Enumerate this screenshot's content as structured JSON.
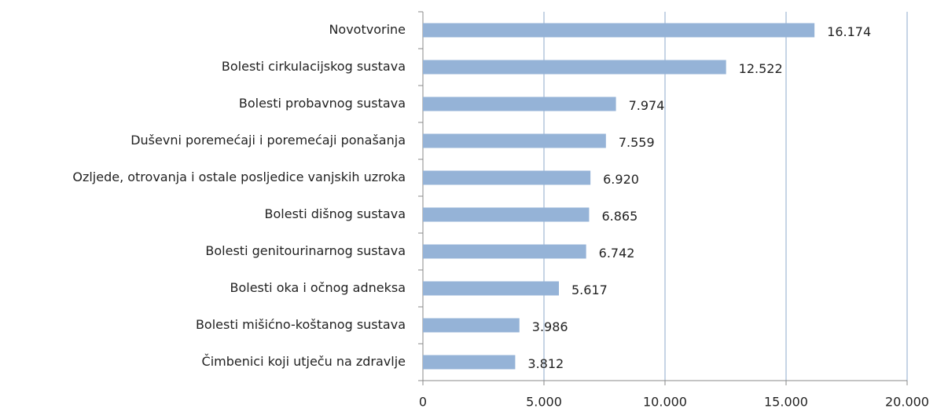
{
  "chart_data": {
    "type": "bar",
    "orientation": "horizontal",
    "categories": [
      "Novotvorine",
      "Bolesti cirkulacijskog sustava",
      "Bolesti probavnog sustava",
      "Duševni poremećaji i poremećaji ponašanja",
      "Ozljede, otrovanja i ostale posljedice vanjskih uzroka",
      "Bolesti dišnog sustava",
      "Bolesti genitourinarnog sustava",
      "Bolesti oka i očnog adneksa",
      "Bolesti mišićno-koštanog sustava",
      "Čimbenici koji utječu na zdravlje"
    ],
    "values": [
      16174,
      12522,
      7974,
      7559,
      6920,
      6865,
      6742,
      5617,
      3986,
      3812
    ],
    "value_labels": [
      "16.174",
      "12.522",
      "7.974",
      "7.559",
      "6.920",
      "6.865",
      "6.742",
      "5.617",
      "3.986",
      "3.812"
    ],
    "color": "#95b3d7",
    "xlim": [
      0,
      20000
    ],
    "xticks": [
      0,
      {
        "value": 5000,
        "label": "5.000"
      },
      {
        "value": 10000,
        "label": "10.000"
      },
      {
        "value": 15000,
        "label": "15.000"
      },
      {
        "value": 20000,
        "label": "20.000"
      }
    ],
    "grid": true
  }
}
